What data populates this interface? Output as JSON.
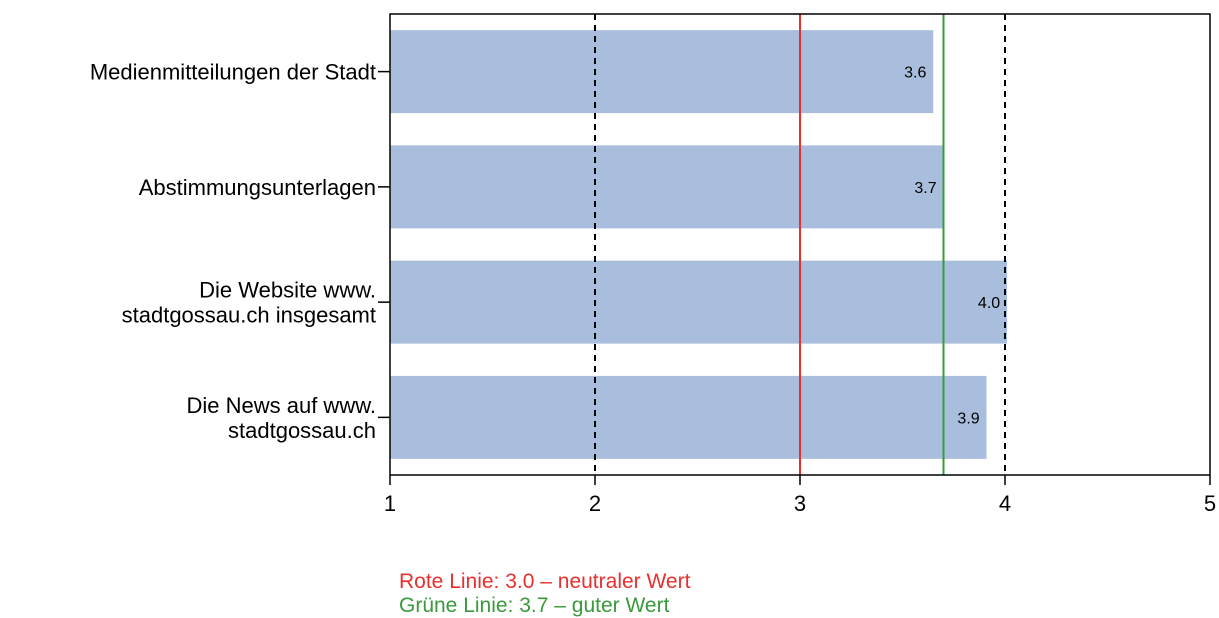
{
  "chart_data": {
    "type": "bar",
    "orientation": "horizontal",
    "categories": [
      [
        "Medienmitteilungen der Stadt"
      ],
      [
        "Abstimmungsunterlagen"
      ],
      [
        "Die Website www.",
        "stadtgossau.ch insgesamt"
      ],
      [
        "Die News auf www.",
        "stadtgossau.ch"
      ]
    ],
    "values": [
      3.65,
      3.7,
      4.01,
      3.91
    ],
    "value_labels": [
      "3.6",
      "3.7",
      "4.0",
      "3.9"
    ],
    "xlim": [
      1,
      5
    ],
    "xticks": [
      "1",
      "2",
      "3",
      "4",
      "5"
    ],
    "grid": "vertical dashed at 2 and 4",
    "reference_lines": [
      {
        "value": 3.0,
        "color": "#e8312f"
      },
      {
        "value": 3.7,
        "color": "#3a9a3c"
      }
    ],
    "bar_color": "#a8bedc",
    "title": "",
    "xlabel": "",
    "ylabel": ""
  },
  "legend": {
    "red_text": "Rote Linie: 3.0 – neutraler Wert",
    "green_text": "Grüne Linie: 3.7 – guter Wert",
    "red_color": "#e8312f",
    "green_color": "#3a9a3c"
  }
}
